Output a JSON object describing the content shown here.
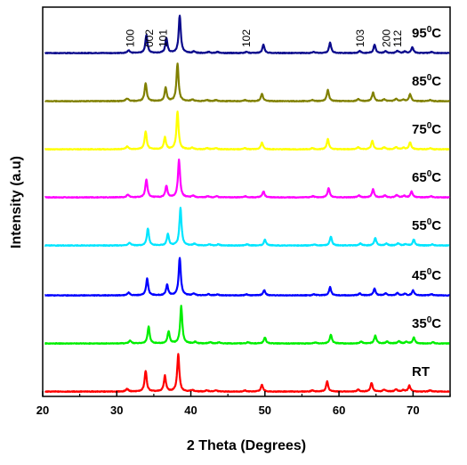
{
  "chart_data": {
    "type": "line",
    "xlabel": "2 Theta (Degrees)",
    "ylabel": "Intensity (a.u)",
    "xlim": [
      20,
      75
    ],
    "xticks": [
      "20",
      "30",
      "40",
      "50",
      "60",
      "70"
    ],
    "yticks": "none",
    "grid": false,
    "legend": "inline labels at right",
    "peak_labels": [
      {
        "label": "100",
        "x": 31.8
      },
      {
        "label": "002",
        "x": 34.4
      },
      {
        "label": "101",
        "x": 36.3
      },
      {
        "label": "102",
        "x": 47.5
      },
      {
        "label": "103",
        "x": 62.9
      },
      {
        "label": "200",
        "x": 66.4
      },
      {
        "label": "112",
        "x": 67.9
      }
    ],
    "series": [
      {
        "name": "RT",
        "base": "RT",
        "sup": "",
        "suffix": "",
        "color": "#ff0000",
        "shift": -0.2,
        "peaks": [
          [
            33.9,
            0.55
          ],
          [
            36.5,
            0.42
          ],
          [
            38.3,
            1.0
          ],
          [
            49.6,
            0.18
          ],
          [
            58.4,
            0.27
          ],
          [
            64.4,
            0.23
          ],
          [
            69.5,
            0.16
          ]
        ]
      },
      {
        "name": "35°C",
        "base": "35",
        "sup": "0",
        "suffix": "C",
        "color": "#00ee00",
        "shift": 0.2,
        "peaks": [
          [
            34.3,
            0.45
          ],
          [
            37.0,
            0.32
          ],
          [
            38.7,
            1.0
          ],
          [
            50.0,
            0.16
          ],
          [
            58.9,
            0.24
          ],
          [
            64.9,
            0.21
          ],
          [
            70.1,
            0.16
          ]
        ]
      },
      {
        "name": "45°C",
        "base": "45",
        "sup": "0",
        "suffix": "C",
        "color": "#0000ff",
        "shift": 0.0,
        "peaks": [
          [
            34.1,
            0.45
          ],
          [
            36.8,
            0.28
          ],
          [
            38.5,
            1.0
          ],
          [
            49.9,
            0.14
          ],
          [
            58.8,
            0.22
          ],
          [
            64.8,
            0.18
          ],
          [
            70.0,
            0.13
          ]
        ]
      },
      {
        "name": "55°C",
        "base": "55",
        "sup": "0",
        "suffix": "C",
        "color": "#00e5ff",
        "shift": 0.1,
        "peaks": [
          [
            34.2,
            0.45
          ],
          [
            36.9,
            0.3
          ],
          [
            38.6,
            1.0
          ],
          [
            50.0,
            0.15
          ],
          [
            58.9,
            0.24
          ],
          [
            64.9,
            0.2
          ],
          [
            70.1,
            0.16
          ]
        ]
      },
      {
        "name": "65°C",
        "base": "65",
        "sup": "0",
        "suffix": "C",
        "color": "#ff00ff",
        "shift": -0.1,
        "peaks": [
          [
            34.0,
            0.48
          ],
          [
            36.7,
            0.3
          ],
          [
            38.4,
            1.0
          ],
          [
            49.8,
            0.16
          ],
          [
            58.6,
            0.25
          ],
          [
            64.6,
            0.22
          ],
          [
            69.8,
            0.16
          ]
        ]
      },
      {
        "name": "75°C",
        "base": "75",
        "sup": "0",
        "suffix": "C",
        "color": "#ffff00",
        "shift": -0.2,
        "peaks": [
          [
            33.9,
            0.48
          ],
          [
            36.5,
            0.32
          ],
          [
            38.2,
            1.0
          ],
          [
            49.6,
            0.18
          ],
          [
            58.5,
            0.27
          ],
          [
            64.5,
            0.22
          ],
          [
            69.6,
            0.19
          ]
        ]
      },
      {
        "name": "85°C",
        "base": "85",
        "sup": "0",
        "suffix": "C",
        "color": "#808000",
        "shift": -0.2,
        "peaks": [
          [
            33.9,
            0.48
          ],
          [
            36.6,
            0.36
          ],
          [
            38.2,
            1.0
          ],
          [
            49.6,
            0.2
          ],
          [
            58.5,
            0.3
          ],
          [
            64.6,
            0.24
          ],
          [
            69.6,
            0.19
          ]
        ]
      },
      {
        "name": "95°C",
        "base": "95",
        "sup": "0",
        "suffix": "C",
        "color": "#0a0a8c",
        "shift": 0.0,
        "peaks": [
          [
            34.0,
            0.48
          ],
          [
            36.7,
            0.4
          ],
          [
            38.5,
            1.0
          ],
          [
            49.8,
            0.22
          ],
          [
            58.8,
            0.28
          ],
          [
            64.8,
            0.22
          ],
          [
            69.9,
            0.16
          ]
        ]
      }
    ]
  }
}
